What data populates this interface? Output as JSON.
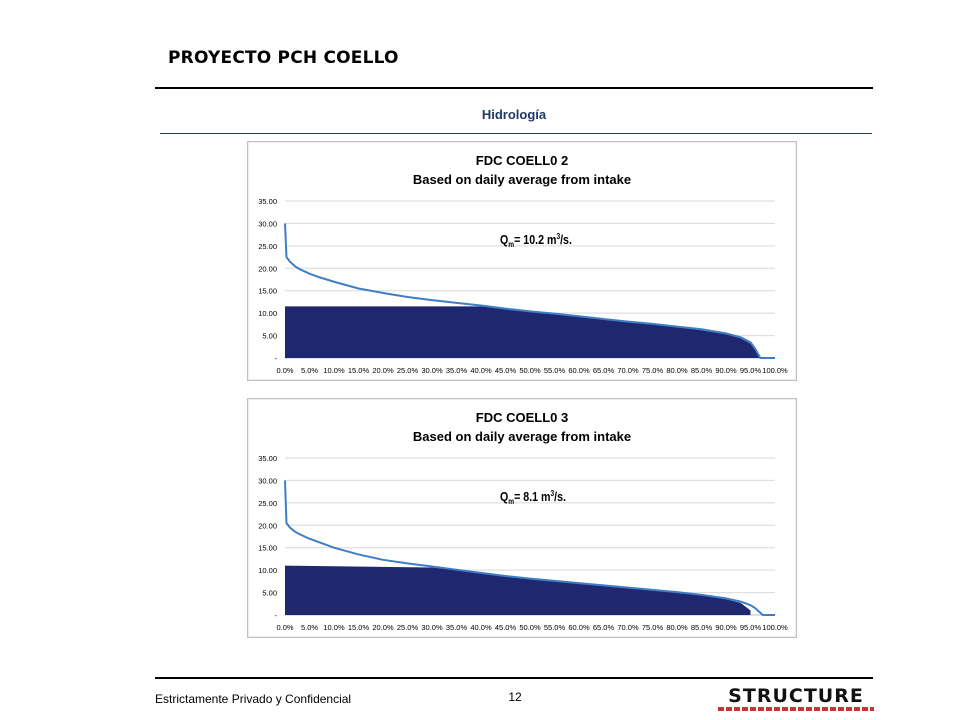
{
  "header": {
    "title": "PROYECTO  PCH COELLO",
    "section": "Hidrología"
  },
  "footer": {
    "confidential": "Estrictamente Privado y Confidencial",
    "page": "12",
    "logo_text": "STRUCTURE"
  },
  "colors": {
    "fill": "#1f2770",
    "line": "#3f7ec6",
    "grid": "#d9d9d9",
    "section": "#1f3864",
    "logo_accent": "#c0392b"
  },
  "chart_data": [
    {
      "type": "area",
      "title": "FDC COELL0 2",
      "subtitle": "Based on daily average from intake",
      "annotation": {
        "main": "Q",
        "sub": "m",
        "rest": "= 10.2 m",
        "sup": "3",
        "tail": "/s."
      },
      "ylim": [
        0,
        35
      ],
      "xlim": [
        0,
        100
      ],
      "yticks": [
        "-",
        "5.00",
        "10.00",
        "15.00",
        "20.00",
        "25.00",
        "30.00",
        "35.00"
      ],
      "xticks": [
        "0.0%",
        "5.0%",
        "10.0%",
        "15.0%",
        "20.0%",
        "25.0%",
        "30.0%",
        "35.0%",
        "40.0%",
        "45.0%",
        "50.0%",
        "55.0%",
        "60.0%",
        "65.0%",
        "70.0%",
        "75.0%",
        "80.0%",
        "85.0%",
        "90.0%",
        "95.0%",
        "100.0%"
      ],
      "grid": true,
      "series": [
        {
          "x": [
            0,
            0.3,
            1,
            2,
            3,
            5,
            7,
            10,
            15,
            20,
            25,
            30,
            35,
            40,
            45,
            50,
            55,
            60,
            65,
            70,
            75,
            80,
            85,
            90,
            93,
            95,
            96,
            97,
            97.5,
            98,
            99,
            100
          ],
          "y": [
            30.0,
            22.5,
            21.5,
            20.5,
            19.8,
            18.8,
            18.0,
            17.0,
            15.5,
            14.5,
            13.6,
            12.9,
            12.3,
            11.7,
            11.0,
            10.4,
            9.9,
            9.3,
            8.7,
            8.1,
            7.6,
            7.0,
            6.4,
            5.5,
            4.6,
            3.5,
            2.0,
            0,
            0,
            0,
            0,
            0
          ]
        },
        {
          "x": [
            0,
            40,
            45,
            50,
            55,
            60,
            65,
            70,
            75,
            80,
            85,
            90,
            93,
            95,
            96,
            96.5,
            97
          ],
          "y": [
            11.5,
            11.5,
            10.9,
            10.3,
            9.8,
            9.2,
            8.6,
            8.0,
            7.5,
            6.9,
            6.2,
            5.3,
            4.4,
            3.2,
            2.0,
            1.0,
            0.5
          ]
        }
      ]
    },
    {
      "type": "area",
      "title": "FDC COELL0 3",
      "subtitle": "Based on daily average from intake",
      "annotation": {
        "main": "Q",
        "sub": "m",
        "rest": "= 8.1 m",
        "sup": "3",
        "tail": "/s."
      },
      "ylim": [
        0,
        35
      ],
      "xlim": [
        0,
        100
      ],
      "yticks": [
        "-",
        "5.00",
        "10.00",
        "15.00",
        "20.00",
        "25.00",
        "30.00",
        "35.00"
      ],
      "xticks": [
        "0.0%",
        "5.0%",
        "10.0%",
        "15.0%",
        "20.0%",
        "25.0%",
        "30.0%",
        "35.0%",
        "40.0%",
        "45.0%",
        "50.0%",
        "55.0%",
        "60.0%",
        "65.0%",
        "70.0%",
        "75.0%",
        "80.0%",
        "85.0%",
        "90.0%",
        "95.0%",
        "100.0%"
      ],
      "grid": true,
      "series": [
        {
          "x": [
            0,
            0.3,
            1,
            2,
            3,
            5,
            7,
            10,
            15,
            20,
            25,
            30,
            35,
            40,
            45,
            50,
            55,
            60,
            65,
            70,
            75,
            80,
            85,
            90,
            93,
            95,
            96,
            97,
            97.5,
            98,
            100
          ],
          "y": [
            30.0,
            20.5,
            19.5,
            18.6,
            18.0,
            17.0,
            16.2,
            15.0,
            13.5,
            12.3,
            11.5,
            10.8,
            10.1,
            9.4,
            8.7,
            8.1,
            7.6,
            7.1,
            6.6,
            6.1,
            5.6,
            5.1,
            4.5,
            3.7,
            3.0,
            2.2,
            1.5,
            0.5,
            0,
            0,
            0
          ]
        },
        {
          "x": [
            0,
            30,
            35,
            40,
            45,
            50,
            55,
            60,
            65,
            70,
            75,
            80,
            85,
            90,
            93,
            95
          ],
          "y": [
            11.0,
            10.6,
            10.0,
            9.3,
            8.6,
            8.0,
            7.5,
            7.0,
            6.5,
            6.0,
            5.5,
            5.0,
            4.4,
            3.5,
            2.7,
            1.0
          ]
        }
      ]
    }
  ]
}
